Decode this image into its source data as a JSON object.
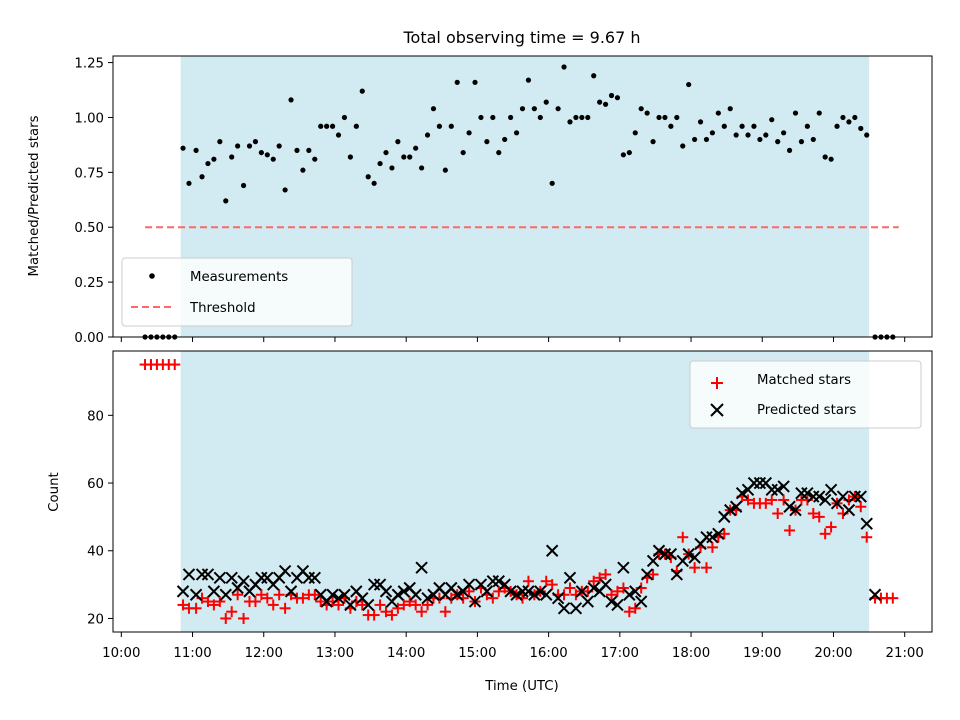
{
  "chart_data": [
    {
      "type": "scatter",
      "title": "Total observing time = 9.67 h",
      "xlabel": "",
      "ylabel": "Matched/Predicted stars",
      "ylim": [
        0,
        1.28
      ],
      "xlim": [
        "09:53",
        "21:23"
      ],
      "yticks": [
        "0.00",
        "0.25",
        "0.50",
        "0.75",
        "1.00",
        "1.25"
      ],
      "shaded_span": [
        "10:50",
        "20:30"
      ],
      "shade_color": "#add8e6",
      "legend_position": "lower-left",
      "series": [
        {
          "name": "Measurements",
          "color": "#000000",
          "marker": "dot",
          "x": [
            "10:20",
            "10:25",
            "10:30",
            "10:35",
            "10:40",
            "10:45",
            "10:52",
            "10:57",
            "11:03",
            "11:08",
            "11:13",
            "11:18",
            "11:23",
            "11:28",
            "11:33",
            "11:38",
            "11:43",
            "11:48",
            "11:53",
            "11:58",
            "12:03",
            "12:08",
            "12:13",
            "12:18",
            "12:23",
            "12:28",
            "12:33",
            "12:38",
            "12:43",
            "12:48",
            "12:53",
            "12:58",
            "13:03",
            "13:08",
            "13:13",
            "13:18",
            "13:23",
            "13:28",
            "13:33",
            "13:38",
            "13:43",
            "13:48",
            "13:53",
            "13:58",
            "14:03",
            "14:08",
            "14:13",
            "14:18",
            "14:23",
            "14:28",
            "14:33",
            "14:38",
            "14:43",
            "14:48",
            "14:53",
            "14:58",
            "15:03",
            "15:08",
            "15:13",
            "15:18",
            "15:23",
            "15:28",
            "15:33",
            "15:38",
            "15:43",
            "15:48",
            "15:53",
            "15:58",
            "16:03",
            "16:08",
            "16:13",
            "16:18",
            "16:23",
            "16:28",
            "16:33",
            "16:38",
            "16:43",
            "16:48",
            "16:53",
            "16:58",
            "17:03",
            "17:08",
            "17:13",
            "17:18",
            "17:23",
            "17:28",
            "17:33",
            "17:38",
            "17:43",
            "17:48",
            "17:53",
            "17:58",
            "18:03",
            "18:08",
            "18:13",
            "18:18",
            "18:23",
            "18:28",
            "18:33",
            "18:38",
            "18:43",
            "18:48",
            "18:53",
            "18:58",
            "19:03",
            "19:08",
            "19:13",
            "19:18",
            "19:23",
            "19:28",
            "19:33",
            "19:38",
            "19:43",
            "19:48",
            "19:53",
            "19:58",
            "20:03",
            "20:08",
            "20:13",
            "20:18",
            "20:23",
            "20:28",
            "20:35",
            "20:40",
            "20:45",
            "20:50"
          ],
          "y": [
            0,
            0,
            0,
            0,
            0,
            0,
            0.86,
            0.7,
            0.85,
            0.73,
            0.79,
            0.81,
            0.89,
            0.62,
            0.82,
            0.87,
            0.69,
            0.87,
            0.89,
            0.84,
            0.83,
            0.81,
            0.87,
            0.67,
            1.08,
            0.85,
            0.76,
            0.85,
            0.81,
            0.96,
            0.96,
            0.96,
            0.92,
            1.0,
            0.82,
            0.96,
            1.12,
            0.73,
            0.7,
            0.79,
            0.84,
            0.77,
            0.89,
            0.82,
            0.82,
            0.86,
            0.77,
            0.92,
            1.04,
            0.96,
            0.76,
            0.96,
            1.16,
            0.84,
            0.93,
            1.16,
            1.0,
            0.89,
            1.0,
            0.84,
            0.9,
            1.0,
            0.93,
            1.04,
            1.17,
            1.04,
            1.0,
            1.07,
            0.7,
            1.04,
            1.23,
            0.98,
            1.0,
            1.0,
            1.0,
            1.19,
            1.07,
            1.06,
            1.1,
            1.09,
            0.83,
            0.84,
            0.93,
            1.04,
            1.02,
            0.89,
            1.0,
            1.0,
            0.96,
            1.0,
            0.87,
            1.15,
            0.9,
            0.98,
            0.9,
            0.93,
            1.02,
            0.96,
            1.04,
            0.92,
            0.96,
            0.92,
            0.96,
            0.9,
            0.92,
            0.99,
            0.89,
            0.93,
            0.85,
            1.02,
            0.89,
            0.96,
            0.9,
            1.02,
            0.82,
            0.81,
            0.96,
            1.0,
            0.98,
            1.0,
            0.95,
            0.92,
            0,
            0,
            0,
            0
          ]
        },
        {
          "name": "Threshold",
          "color": "#ff6666",
          "line": "dashed",
          "x": [
            "10:20",
            "20:55"
          ],
          "y": [
            0.5,
            0.5
          ]
        }
      ]
    },
    {
      "type": "scatter",
      "title": "",
      "xlabel": "Time (UTC)",
      "ylabel": "Count",
      "ylim": [
        16,
        99
      ],
      "xlim": [
        "09:53",
        "21:23"
      ],
      "yticks": [
        "20",
        "40",
        "60",
        "80"
      ],
      "xticks": [
        "10:00",
        "11:00",
        "12:00",
        "13:00",
        "14:00",
        "15:00",
        "16:00",
        "17:00",
        "18:00",
        "19:00",
        "20:00",
        "21:00"
      ],
      "shaded_span": [
        "10:50",
        "20:30"
      ],
      "shade_color": "#add8e6",
      "legend_position": "top-right",
      "series": [
        {
          "name": "Matched stars",
          "color": "#ff0000",
          "marker": "plus",
          "x": [
            "10:20",
            "10:25",
            "10:30",
            "10:35",
            "10:40",
            "10:45",
            "10:52",
            "10:57",
            "11:03",
            "11:08",
            "11:13",
            "11:18",
            "11:23",
            "11:28",
            "11:33",
            "11:38",
            "11:43",
            "11:48",
            "11:53",
            "11:58",
            "12:03",
            "12:08",
            "12:13",
            "12:18",
            "12:23",
            "12:28",
            "12:33",
            "12:38",
            "12:43",
            "12:48",
            "12:53",
            "12:58",
            "13:03",
            "13:08",
            "13:13",
            "13:18",
            "13:23",
            "13:28",
            "13:33",
            "13:38",
            "13:43",
            "13:48",
            "13:53",
            "13:58",
            "14:03",
            "14:08",
            "14:13",
            "14:18",
            "14:23",
            "14:28",
            "14:33",
            "14:38",
            "14:43",
            "14:48",
            "14:53",
            "14:58",
            "15:03",
            "15:08",
            "15:13",
            "15:18",
            "15:23",
            "15:28",
            "15:33",
            "15:38",
            "15:43",
            "15:48",
            "15:53",
            "15:58",
            "16:03",
            "16:08",
            "16:13",
            "16:18",
            "16:23",
            "16:28",
            "16:33",
            "16:38",
            "16:43",
            "16:48",
            "16:53",
            "16:58",
            "17:03",
            "17:08",
            "17:13",
            "17:18",
            "17:23",
            "17:28",
            "17:33",
            "17:38",
            "17:43",
            "17:48",
            "17:53",
            "17:58",
            "18:03",
            "18:08",
            "18:13",
            "18:18",
            "18:23",
            "18:28",
            "18:33",
            "18:38",
            "18:43",
            "18:48",
            "18:53",
            "18:58",
            "19:03",
            "19:08",
            "19:13",
            "19:18",
            "19:23",
            "19:28",
            "19:33",
            "19:38",
            "19:43",
            "19:48",
            "19:53",
            "19:58",
            "20:03",
            "20:08",
            "20:13",
            "20:18",
            "20:23",
            "20:28",
            "20:35",
            "20:40",
            "20:45",
            "20:50"
          ],
          "y": [
            95,
            95,
            95,
            95,
            95,
            95,
            24,
            23,
            23,
            26,
            25,
            24,
            25,
            20,
            22,
            27,
            20,
            25,
            25,
            27,
            26,
            24,
            27,
            23,
            27,
            26,
            26,
            27,
            27,
            25,
            24,
            25,
            24,
            26,
            23,
            25,
            24,
            21,
            21,
            24,
            22,
            21,
            23,
            24,
            25,
            24,
            22,
            24,
            26,
            26,
            22,
            26,
            27,
            26,
            28,
            25,
            29,
            27,
            26,
            28,
            29,
            28,
            27,
            26,
            31,
            27,
            28,
            31,
            30,
            27,
            27,
            29,
            27,
            28,
            28,
            31,
            32,
            33,
            27,
            28,
            29,
            22,
            23,
            29,
            32,
            33,
            39,
            39,
            38,
            34,
            44,
            39,
            35,
            41,
            35,
            41,
            44,
            45,
            52,
            52,
            56,
            55,
            54,
            54,
            54,
            55,
            51,
            55,
            46,
            52,
            55,
            55,
            51,
            50,
            45,
            47,
            54,
            51,
            55,
            56,
            53,
            44,
            26,
            26,
            26,
            26
          ]
        },
        {
          "name": "Predicted stars",
          "color": "#000000",
          "marker": "x",
          "x": [
            "10:52",
            "10:57",
            "11:03",
            "11:08",
            "11:13",
            "11:18",
            "11:23",
            "11:28",
            "11:33",
            "11:38",
            "11:43",
            "11:48",
            "11:53",
            "11:58",
            "12:03",
            "12:08",
            "12:13",
            "12:18",
            "12:23",
            "12:28",
            "12:33",
            "12:38",
            "12:43",
            "12:48",
            "12:53",
            "12:58",
            "13:03",
            "13:08",
            "13:13",
            "13:18",
            "13:23",
            "13:28",
            "13:33",
            "13:38",
            "13:43",
            "13:48",
            "13:53",
            "13:58",
            "14:03",
            "14:08",
            "14:13",
            "14:18",
            "14:23",
            "14:28",
            "14:33",
            "14:38",
            "14:43",
            "14:48",
            "14:53",
            "14:58",
            "15:03",
            "15:08",
            "15:13",
            "15:18",
            "15:23",
            "15:28",
            "15:33",
            "15:38",
            "15:43",
            "15:48",
            "15:53",
            "15:58",
            "16:03",
            "16:08",
            "16:13",
            "16:18",
            "16:23",
            "16:28",
            "16:33",
            "16:38",
            "16:43",
            "16:48",
            "16:53",
            "16:58",
            "17:03",
            "17:08",
            "17:13",
            "17:18",
            "17:23",
            "17:28",
            "17:33",
            "17:38",
            "17:43",
            "17:48",
            "17:53",
            "17:58",
            "18:03",
            "18:08",
            "18:13",
            "18:18",
            "18:23",
            "18:28",
            "18:33",
            "18:38",
            "18:43",
            "18:48",
            "18:53",
            "18:58",
            "19:03",
            "19:08",
            "19:13",
            "19:18",
            "19:23",
            "19:28",
            "19:33",
            "19:38",
            "19:43",
            "19:48",
            "19:53",
            "19:58",
            "20:03",
            "20:08",
            "20:13",
            "20:18",
            "20:23",
            "20:28",
            "20:35"
          ],
          "y": [
            28,
            33,
            27,
            33,
            33,
            28,
            32,
            27,
            32,
            29,
            31,
            28,
            30,
            32,
            32,
            30,
            32,
            34,
            28,
            32,
            34,
            32,
            32,
            27,
            25,
            27,
            26,
            27,
            24,
            28,
            26,
            24,
            30,
            30,
            28,
            25,
            27,
            28,
            29,
            27,
            35,
            26,
            27,
            29,
            27,
            29,
            27,
            28,
            30,
            25,
            30,
            28,
            31,
            31,
            30,
            28,
            27,
            28,
            28,
            27,
            28,
            27,
            40,
            26,
            23,
            32,
            23,
            28,
            25,
            29,
            28,
            30,
            25,
            24,
            35,
            27,
            28,
            25,
            33,
            37,
            40,
            39,
            39,
            33,
            37,
            39,
            38,
            42,
            44,
            44,
            45,
            50,
            52,
            53,
            57,
            58,
            60,
            60,
            60,
            58,
            58,
            59,
            53,
            52,
            57,
            57,
            56,
            56,
            55,
            58,
            54,
            56,
            52,
            56,
            56,
            48,
            27
          ]
        }
      ]
    }
  ]
}
